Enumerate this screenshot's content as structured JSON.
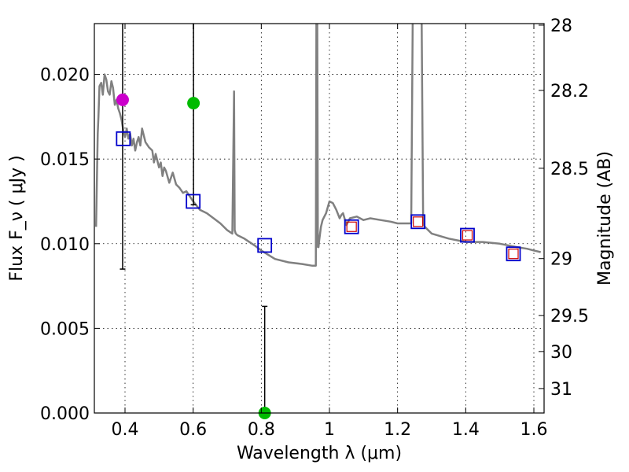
{
  "chart_data": {
    "type": "scatter",
    "title": "",
    "xlabel": "Wavelength  λ (μm)",
    "ylabel": "Flux  F_ν  ( μJy )",
    "ylabel_right": "Magnitude (AB)",
    "xlim": [
      0.31,
      1.63
    ],
    "ylim": [
      0.0,
      0.023
    ],
    "grid": true,
    "colors": {
      "model": "#808080",
      "model_squares": "#0000cc",
      "observed_squares": "#cc0000",
      "magenta_point": "#cc00cc",
      "green_point": "#00bb00",
      "errorbar": "#000000"
    },
    "x_ticks": [
      {
        "value": 0.4,
        "label": "0.4"
      },
      {
        "value": 0.6,
        "label": "0.6"
      },
      {
        "value": 0.8,
        "label": "0.8"
      },
      {
        "value": 1.0,
        "label": "1"
      },
      {
        "value": 1.2,
        "label": "1.2"
      },
      {
        "value": 1.4,
        "label": "1.4"
      },
      {
        "value": 1.6,
        "label": "1.6"
      }
    ],
    "y_ticks": [
      {
        "value": 0.0,
        "label": "0.000"
      },
      {
        "value": 0.005,
        "label": "0.005"
      },
      {
        "value": 0.01,
        "label": "0.010"
      },
      {
        "value": 0.015,
        "label": "0.015"
      },
      {
        "value": 0.02,
        "label": "0.020"
      }
    ],
    "mag_ticks": [
      {
        "value": 28,
        "label": "28"
      },
      {
        "value": 28.2,
        "label": "28.2"
      },
      {
        "value": 28.5,
        "label": "28.5"
      },
      {
        "value": 29,
        "label": "29"
      },
      {
        "value": 29.5,
        "label": "29.5"
      },
      {
        "value": 30,
        "label": "30"
      },
      {
        "value": 31,
        "label": "31"
      }
    ],
    "model_spectrum": {
      "name": "model SED",
      "x": [
        0.315,
        0.32,
        0.322,
        0.325,
        0.33,
        0.335,
        0.34,
        0.345,
        0.35,
        0.355,
        0.36,
        0.365,
        0.37,
        0.375,
        0.38,
        0.385,
        0.39,
        0.395,
        0.4,
        0.405,
        0.41,
        0.415,
        0.42,
        0.425,
        0.43,
        0.435,
        0.44,
        0.445,
        0.45,
        0.46,
        0.47,
        0.48,
        0.485,
        0.49,
        0.5,
        0.505,
        0.51,
        0.515,
        0.52,
        0.53,
        0.54,
        0.55,
        0.56,
        0.57,
        0.58,
        0.6,
        0.62,
        0.64,
        0.66,
        0.68,
        0.7,
        0.715,
        0.72,
        0.722,
        0.725,
        0.73,
        0.75,
        0.78,
        0.8,
        0.84,
        0.88,
        0.92,
        0.95,
        0.96,
        0.962,
        0.964,
        0.966,
        0.968,
        0.97,
        0.975,
        0.98,
        0.99,
        1.0,
        1.01,
        1.02,
        1.03,
        1.035,
        1.04,
        1.05,
        1.06,
        1.08,
        1.1,
        1.12,
        1.15,
        1.18,
        1.2,
        1.24,
        1.245,
        1.25,
        1.26,
        1.27,
        1.275,
        1.28,
        1.3,
        1.35,
        1.4,
        1.45,
        1.5,
        1.55,
        1.58,
        1.6,
        1.62
      ],
      "y": [
        0.011,
        0.0165,
        0.0175,
        0.0193,
        0.0195,
        0.0188,
        0.02,
        0.0197,
        0.019,
        0.0188,
        0.0196,
        0.0192,
        0.0182,
        0.0185,
        0.018,
        0.0177,
        0.0173,
        0.0167,
        0.0163,
        0.0168,
        0.0162,
        0.0165,
        0.0158,
        0.0162,
        0.0155,
        0.016,
        0.0163,
        0.0158,
        0.0168,
        0.016,
        0.0157,
        0.0155,
        0.0148,
        0.0153,
        0.0145,
        0.0148,
        0.014,
        0.0145,
        0.0143,
        0.0136,
        0.0142,
        0.0135,
        0.0133,
        0.013,
        0.0131,
        0.0125,
        0.012,
        0.0118,
        0.0115,
        0.0112,
        0.0108,
        0.0106,
        0.019,
        0.0108,
        0.0106,
        0.0105,
        0.0103,
        0.0099,
        0.0096,
        0.0091,
        0.0089,
        0.0088,
        0.0087,
        0.0087,
        0.025,
        0.025,
        0.0098,
        0.0098,
        0.0102,
        0.011,
        0.0114,
        0.0118,
        0.0125,
        0.0124,
        0.012,
        0.0115,
        0.0117,
        0.0118,
        0.0111,
        0.0115,
        0.0116,
        0.0114,
        0.0115,
        0.0114,
        0.0113,
        0.0112,
        0.0112,
        0.025,
        0.025,
        0.025,
        0.025,
        0.0112,
        0.011,
        0.0106,
        0.0103,
        0.0101,
        0.0101,
        0.01,
        0.0098,
        0.0097,
        0.0096,
        0.0095
      ]
    },
    "model_photometry": {
      "name": "model photometry",
      "x": [
        0.395,
        0.6,
        0.81,
        1.065,
        1.26,
        1.405,
        1.54
      ],
      "y": [
        0.0162,
        0.0125,
        0.0099,
        0.011,
        0.0113,
        0.0105,
        0.0094
      ]
    },
    "observed_photometry": {
      "name": "observed photometry",
      "x": [
        1.065,
        1.26,
        1.405,
        1.54
      ],
      "y": [
        0.011,
        0.0113,
        0.0105,
        0.0094
      ]
    },
    "points": [
      {
        "name": "magenta-point",
        "x": 0.393,
        "y": 0.0185,
        "err_low": 0.0085,
        "err_high": 0.023,
        "color_key": "magenta_point"
      },
      {
        "name": "green-point",
        "x": 0.601,
        "y": 0.0183,
        "err_low": 0.0123,
        "err_high": 0.023,
        "color_key": "green_point"
      },
      {
        "name": "green-point-zero",
        "x": 0.81,
        "y": 0.0,
        "err_low": 0.0,
        "err_high": 0.0063,
        "color_key": "green_point"
      }
    ]
  }
}
